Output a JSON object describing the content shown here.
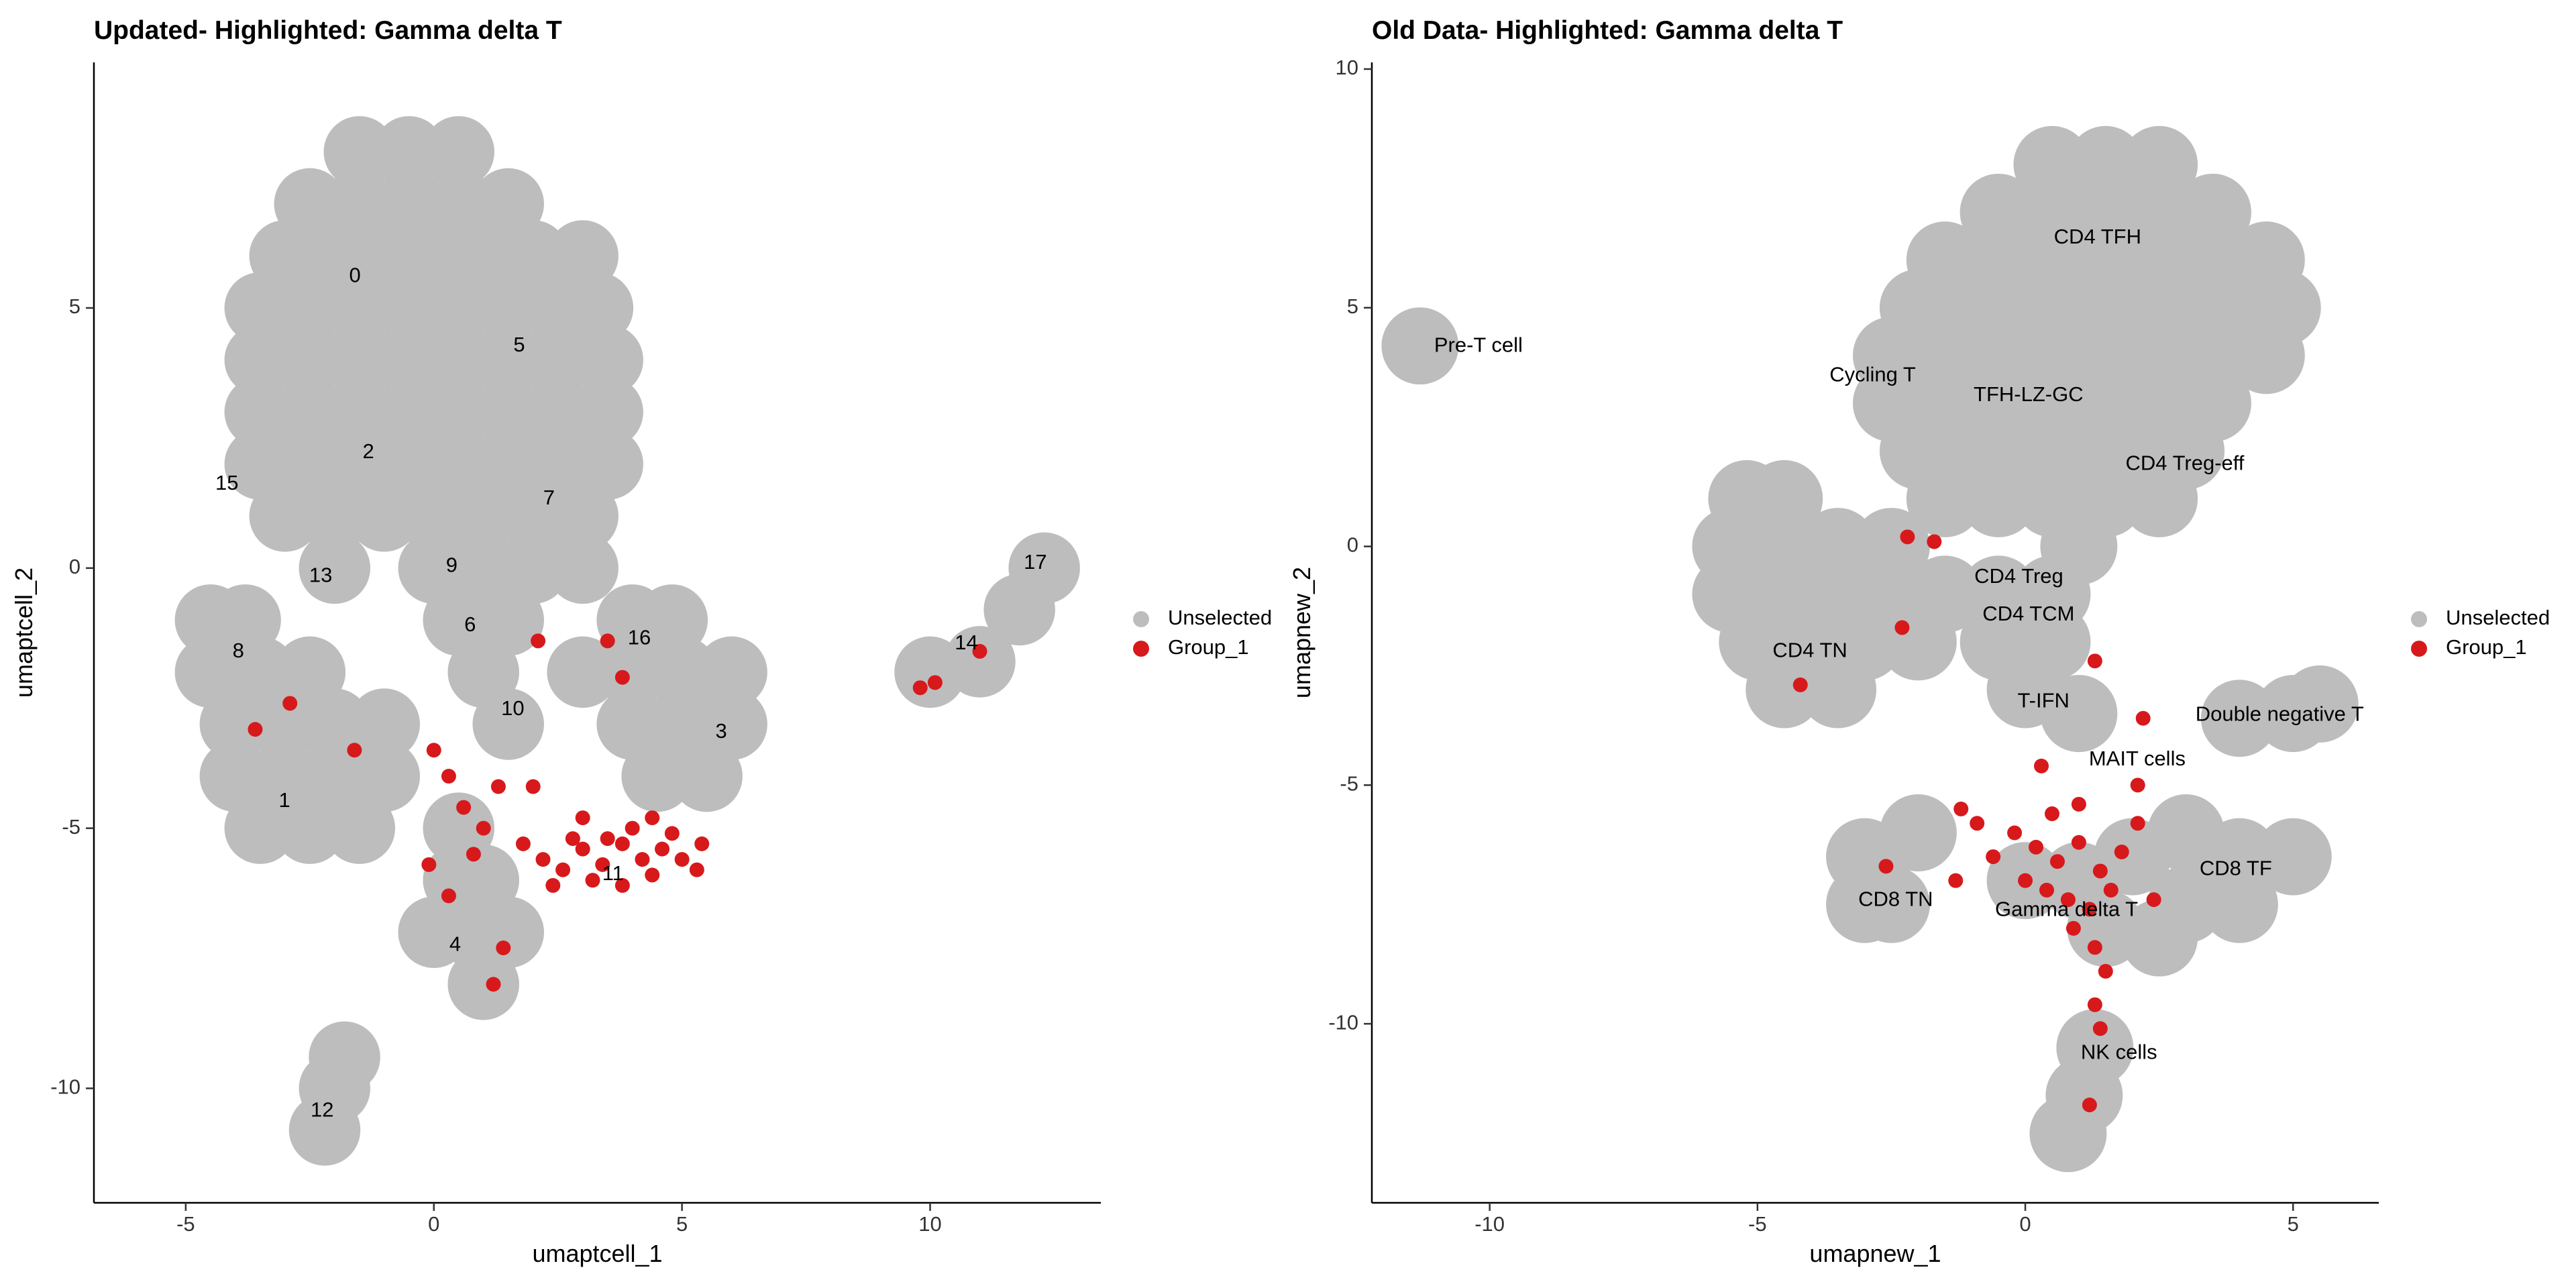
{
  "chart_data": [
    {
      "type": "scatter",
      "title": "Updated- Highlighted: Gamma delta T",
      "x_label": "umaptcell_1",
      "y_label": "umaptcell_2",
      "xlim": [
        -6.85,
        13.44
      ],
      "ylim": [
        -12.2,
        9.72
      ],
      "xticks": [
        -5,
        0,
        5,
        10
      ],
      "yticks": [
        -10,
        -5,
        0,
        5
      ],
      "legend": "right",
      "series": [
        {
          "name": "Unselected",
          "color": "#bdbdbd",
          "x": [
            -1.5,
            -0.5,
            0.5,
            -2.5,
            -1.5,
            -0.5,
            0.5,
            1.5,
            -3,
            -2,
            -1,
            0,
            1,
            2,
            3,
            -3.5,
            -2.5,
            -1.5,
            -0.5,
            0.5,
            1.5,
            2.5,
            3.3,
            -3.5,
            -2.5,
            -1.5,
            -0.5,
            0.5,
            1.5,
            2.5,
            3.5,
            -3.5,
            -2.5,
            -1.5,
            -0.5,
            0.5,
            1.5,
            2.5,
            3.5,
            -3.5,
            -2.5,
            -1.5,
            -0.5,
            0.5,
            1.5,
            2.5,
            3.5,
            -3,
            -2,
            -1,
            0,
            1,
            2,
            3,
            -2,
            0,
            1,
            2,
            3,
            -3.8,
            -4.5,
            0.5,
            1.5,
            4,
            4.8,
            -4.5,
            -3.5,
            -2.5,
            1,
            3,
            4,
            5,
            6,
            -4,
            -3,
            -2,
            -1,
            1.5,
            4,
            5,
            6,
            -4,
            -3,
            -2,
            -1,
            4.5,
            5.5,
            -3.5,
            -2.5,
            -1.5,
            0.5,
            0.5,
            1,
            0,
            0.8,
            1.5,
            1,
            -2,
            -1.8,
            -2.2,
            10,
            11,
            11.8,
            12.3
          ],
          "values": [
            8,
            8,
            8,
            7,
            7,
            7,
            7,
            7,
            6,
            6,
            6,
            6,
            6,
            6,
            6,
            5,
            5,
            5,
            5,
            5,
            5,
            5,
            5,
            4,
            4,
            4,
            4,
            4,
            4,
            4,
            4,
            3,
            3,
            3,
            3,
            3,
            3,
            3,
            3,
            2,
            2,
            2,
            2,
            2,
            2,
            2,
            2,
            1,
            1,
            1,
            1,
            1,
            1,
            1,
            0,
            0,
            0,
            0,
            0,
            -1,
            -1,
            -1,
            -1,
            -1,
            -1,
            -2,
            -2,
            -2,
            -2,
            -2,
            -2,
            -2,
            -2,
            -3,
            -3,
            -3,
            -3,
            -3,
            -3,
            -3,
            -3,
            -4,
            -4,
            -4,
            -4,
            -4,
            -4,
            -5,
            -5,
            -5,
            -5,
            -6,
            -6,
            -7,
            -7,
            -7,
            -8,
            -10,
            -9.4,
            -10.8,
            -2,
            -1.8,
            -0.8,
            0
          ]
        },
        {
          "name": "Group_1",
          "color": "#d7191c",
          "x": [
            2.2,
            2.6,
            3,
            3.4,
            3.8,
            4.2,
            4.6,
            5,
            5.3,
            3.2,
            3.8,
            4.4,
            4.8,
            4,
            3.5,
            2.8,
            2.4,
            5.4,
            3,
            4.4,
            0,
            0.3,
            0.6,
            1,
            1.3,
            0.8,
            1.8,
            2,
            -0.1,
            0.3,
            1.4,
            1.2,
            -1.6,
            -3.6,
            -2.9,
            2.1,
            3.5,
            3.8,
            9.8,
            10.1,
            11
          ],
          "values": [
            -5.6,
            -5.8,
            -5.4,
            -5.7,
            -5.3,
            -5.6,
            -5.4,
            -5.6,
            -5.8,
            -6,
            -6.1,
            -5.9,
            -5.1,
            -5,
            -5.2,
            -5.2,
            -6.1,
            -5.3,
            -4.8,
            -4.8,
            -3.5,
            -4,
            -4.6,
            -5,
            -4.2,
            -5.5,
            -5.3,
            -4.2,
            -5.7,
            -6.3,
            -7.3,
            -8,
            -3.5,
            -3.1,
            -2.6,
            -1.4,
            -1.4,
            -2.1,
            -2.3,
            -2.2,
            -1.6
          ]
        }
      ],
      "annotations": [
        {
          "text": "0",
          "x": -1.59,
          "y": 5.6
        },
        {
          "text": "5",
          "x": 1.72,
          "y": 4.27
        },
        {
          "text": "2",
          "x": -1.32,
          "y": 2.22
        },
        {
          "text": "15",
          "x": -4.17,
          "y": 1.61
        },
        {
          "text": "7",
          "x": 2.32,
          "y": 1.33
        },
        {
          "text": "13",
          "x": -2.28,
          "y": -0.16
        },
        {
          "text": "9",
          "x": 0.36,
          "y": 0.03
        },
        {
          "text": "17",
          "x": 12.12,
          "y": 0.09
        },
        {
          "text": "6",
          "x": 0.73,
          "y": -1.11
        },
        {
          "text": "16",
          "x": 4.14,
          "y": -1.36
        },
        {
          "text": "14",
          "x": 10.73,
          "y": -1.46
        },
        {
          "text": "8",
          "x": -3.94,
          "y": -1.61
        },
        {
          "text": "10",
          "x": 1.59,
          "y": -2.72
        },
        {
          "text": "3",
          "x": 5.79,
          "y": -3.16
        },
        {
          "text": "1",
          "x": -3.01,
          "y": -4.49
        },
        {
          "text": "11",
          "x": 3.61,
          "y": -5.89
        },
        {
          "text": "4",
          "x": 0.43,
          "y": -7.25
        },
        {
          "text": "12",
          "x": -2.25,
          "y": -10.44
        }
      ]
    },
    {
      "type": "scatter",
      "title": "Old Data- Highlighted: Gamma delta T",
      "x_label": "umapnew_1",
      "y_label": "umapnew_2",
      "xlim": [
        -12.2,
        6.6
      ],
      "ylim": [
        -13.75,
        10.14
      ],
      "xticks": [
        -10,
        -5,
        0,
        5
      ],
      "yticks": [
        -10,
        -5,
        0,
        5,
        10
      ],
      "legend": "right",
      "series": [
        {
          "name": "Unselected",
          "color": "#bdbdbd",
          "x": [
            0.5,
            1.5,
            2.5,
            -0.5,
            0.5,
            1.5,
            2.5,
            3.5,
            -1.5,
            -0.5,
            0.5,
            1.5,
            2.5,
            3.5,
            4.5,
            -2,
            -1,
            0,
            1,
            2,
            3,
            4,
            4.8,
            -2.5,
            -1.5,
            -0.5,
            0.5,
            1.5,
            2.5,
            3.5,
            4.5,
            -2.5,
            -1.5,
            -0.5,
            0.5,
            1.5,
            2.5,
            3.5,
            -2,
            -1,
            0,
            1,
            2,
            3,
            -1.5,
            -0.5,
            0.5,
            1.5,
            2.5,
            -5.2,
            -4.5,
            -5.5,
            -4.5,
            -3.5,
            -2.5,
            1,
            -5.5,
            -4.5,
            -3.5,
            -2.5,
            -1.5,
            -0.5,
            0.5,
            -5,
            -4,
            -3,
            -2,
            -0.5,
            0.5,
            -4.5,
            -3.5,
            0,
            1,
            4,
            5,
            5.5,
            -3,
            -2.5,
            -2,
            -3,
            3,
            4,
            5,
            3,
            4,
            2.5,
            0,
            1,
            2,
            1.5,
            1.3,
            1.1,
            0.8,
            -11.3
          ],
          "values": [
            8,
            8,
            8,
            7,
            7,
            7,
            7,
            7,
            6,
            6,
            6,
            6,
            6,
            6,
            6,
            5,
            5,
            5,
            5,
            5,
            5,
            5,
            5,
            4,
            4,
            4,
            4,
            4,
            4,
            4,
            4,
            3,
            3,
            3,
            3,
            3,
            3,
            3,
            2,
            2,
            2,
            2,
            2,
            2,
            1,
            1,
            1,
            1,
            1,
            1,
            1,
            0,
            0,
            0,
            0,
            0,
            -1,
            -1,
            -1,
            -1,
            -1,
            -1,
            -1,
            -2,
            -2,
            -2,
            -2,
            -2,
            -2,
            -3,
            -3,
            -3,
            -3.5,
            -3.6,
            -3.5,
            -3.3,
            -6.5,
            -7.5,
            -6,
            -7.5,
            -6,
            -6.5,
            -6.5,
            -7.5,
            -7.5,
            -8.2,
            -7,
            -7,
            -6.5,
            -8,
            -10.5,
            -11.5,
            -12.3,
            4.2
          ]
        },
        {
          "name": "Group_1",
          "color": "#d7191c",
          "x": [
            -0.6,
            -0.2,
            0.2,
            0.6,
            1,
            1.4,
            1.8,
            0,
            0.4,
            0.8,
            1.2,
            1.6,
            0.9,
            1.3,
            1.5,
            1.3,
            1.4,
            0.5,
            1,
            -0.9,
            2.1,
            -1.3,
            2.4,
            -1.2,
            0.3,
            2.2,
            2.1,
            -2.6,
            -2.2,
            -1.7,
            -2.3,
            -4.2,
            1.3,
            1.2
          ],
          "values": [
            -6.5,
            -6,
            -6.3,
            -6.6,
            -6.2,
            -6.8,
            -6.4,
            -7,
            -7.2,
            -7.4,
            -7.6,
            -7.2,
            -8,
            -8.4,
            -8.9,
            -9.6,
            -10.1,
            -5.6,
            -5.4,
            -5.8,
            -5.8,
            -7,
            -7.4,
            -5.5,
            -4.6,
            -3.6,
            -5,
            -6.7,
            0.2,
            0.1,
            -1.7,
            -2.9,
            -2.4,
            -11.7
          ]
        }
      ],
      "annotations": [
        {
          "text": "CD4 TFH",
          "x": 1.35,
          "y": 6.46
        },
        {
          "text": "Pre-T cell",
          "x": -10.21,
          "y": 4.19
        },
        {
          "text": "Cycling T",
          "x": -2.85,
          "y": 3.57
        },
        {
          "text": "TFH-LZ-GC",
          "x": 0.06,
          "y": 3.16
        },
        {
          "text": "CD4 Treg-eff",
          "x": 2.98,
          "y": 1.72
        },
        {
          "text": "CD4 Treg",
          "x": -0.12,
          "y": -0.65
        },
        {
          "text": "CD4 TCM",
          "x": 0.06,
          "y": -1.44
        },
        {
          "text": "CD4 TN",
          "x": -4.02,
          "y": -2.2
        },
        {
          "text": "T-IFN",
          "x": 0.34,
          "y": -3.26
        },
        {
          "text": "Double negative T",
          "x": 4.75,
          "y": -3.54
        },
        {
          "text": "MAIT cells",
          "x": 2.09,
          "y": -4.47
        },
        {
          "text": "CD8 TF",
          "x": 3.93,
          "y": -6.77
        },
        {
          "text": "CD8 TN",
          "x": -2.42,
          "y": -7.42
        },
        {
          "text": "Gamma delta T",
          "x": 0.77,
          "y": -7.63
        },
        {
          "text": "NK cells",
          "x": 1.75,
          "y": -10.62
        }
      ]
    }
  ]
}
